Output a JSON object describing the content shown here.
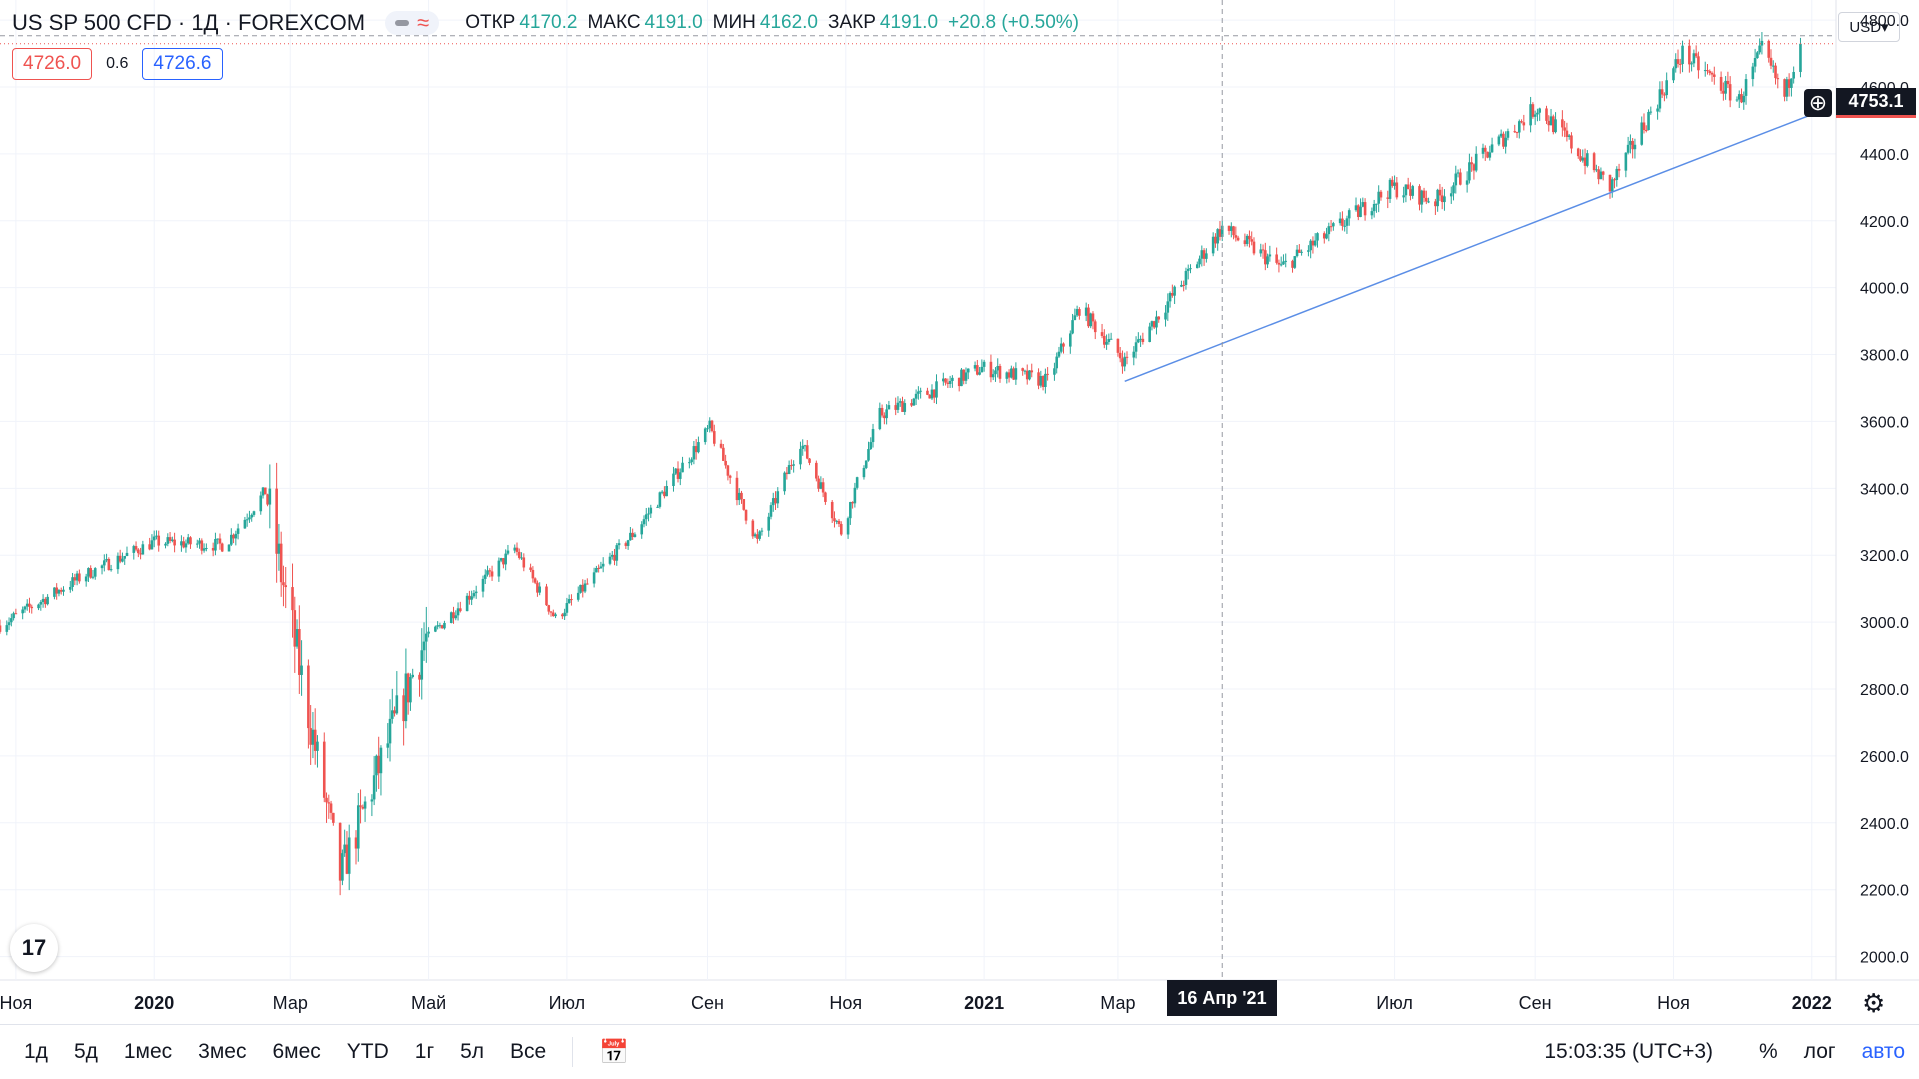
{
  "header": {
    "symbol": "US SP 500 CFD · 1Д · FOREXCOM",
    "ohlc": [
      {
        "k": "ОТКР",
        "v": "4170.2"
      },
      {
        "k": "МАКС",
        "v": "4191.0"
      },
      {
        "k": "МИН",
        "v": "4162.0"
      },
      {
        "k": "ЗАКР",
        "v": "4191.0"
      }
    ],
    "change": "+20.8 (+0.50%)",
    "bid": "4726.0",
    "spread": "0.6",
    "ask": "4726.6",
    "currency": "USD▾"
  },
  "last_price_label": "4753.1",
  "crosshair_date": "16 Апр '21",
  "bottom": {
    "timeframes": [
      "1д",
      "5д",
      "1мес",
      "3мес",
      "6мес",
      "YTD",
      "1г",
      "5л",
      "Все"
    ],
    "clock": "15:03:35 (UTC+3)",
    "percent": "%",
    "log": "лог",
    "auto": "авто"
  },
  "logo_text": "17",
  "colors": {
    "up": "#26a69a",
    "down": "#ef5350",
    "trend": "#5b8ee6",
    "grid": "#f0f3fa"
  },
  "chart_data": {
    "type": "candlestick",
    "x_ticks": [
      "Ноя",
      "2020",
      "Мар",
      "Май",
      "Июл",
      "Сен",
      "Ноя",
      "2021",
      "Мар",
      "Июл",
      "Сен",
      "Ноя",
      "2022"
    ],
    "y_ticks": [
      "2000.0",
      "2200.0",
      "2400.0",
      "2600.0",
      "2800.0",
      "3000.0",
      "3200.0",
      "3400.0",
      "3600.0",
      "3800.0",
      "4000.0",
      "4200.0",
      "4400.0",
      "4600.0",
      "4800.0"
    ],
    "ylim": [
      1930,
      4860
    ],
    "last_price": 4753.1,
    "anchors": [
      [
        "2019-10-25",
        2990
      ],
      [
        "2019-12-01",
        3140
      ],
      [
        "2020-01-01",
        3240
      ],
      [
        "2020-02-01",
        3230
      ],
      [
        "2020-02-19",
        3390
      ],
      [
        "2020-03-23",
        2240
      ],
      [
        "2020-04-29",
        2940
      ],
      [
        "2020-06-08",
        3220
      ],
      [
        "2020-06-26",
        3010
      ],
      [
        "2020-07-31",
        3270
      ],
      [
        "2020-09-02",
        3580
      ],
      [
        "2020-09-23",
        3240
      ],
      [
        "2020-10-12",
        3540
      ],
      [
        "2020-10-30",
        3270
      ],
      [
        "2020-11-16",
        3620
      ],
      [
        "2020-12-31",
        3760
      ],
      [
        "2021-01-29",
        3720
      ],
      [
        "2021-02-12",
        3940
      ],
      [
        "2021-03-04",
        3780
      ],
      [
        "2021-04-16",
        4180
      ],
      [
        "2021-05-12",
        4060
      ],
      [
        "2021-06-30",
        4300
      ],
      [
        "2021-07-19",
        4260
      ],
      [
        "2021-08-31",
        4530
      ],
      [
        "2021-09-02",
        4540
      ],
      [
        "2021-10-04",
        4300
      ],
      [
        "2021-11-05",
        4700
      ],
      [
        "2021-11-30",
        4560
      ],
      [
        "2021-12-10",
        4710
      ],
      [
        "2021-12-20",
        4570
      ],
      [
        "2021-12-27",
        4753
      ]
    ],
    "trend_line": [
      [
        "2021-03-04",
        3720
      ],
      [
        "2021-12-31",
        4515
      ]
    ],
    "crosshair": {
      "date": "2021-04-16",
      "price": 4753.1
    }
  }
}
